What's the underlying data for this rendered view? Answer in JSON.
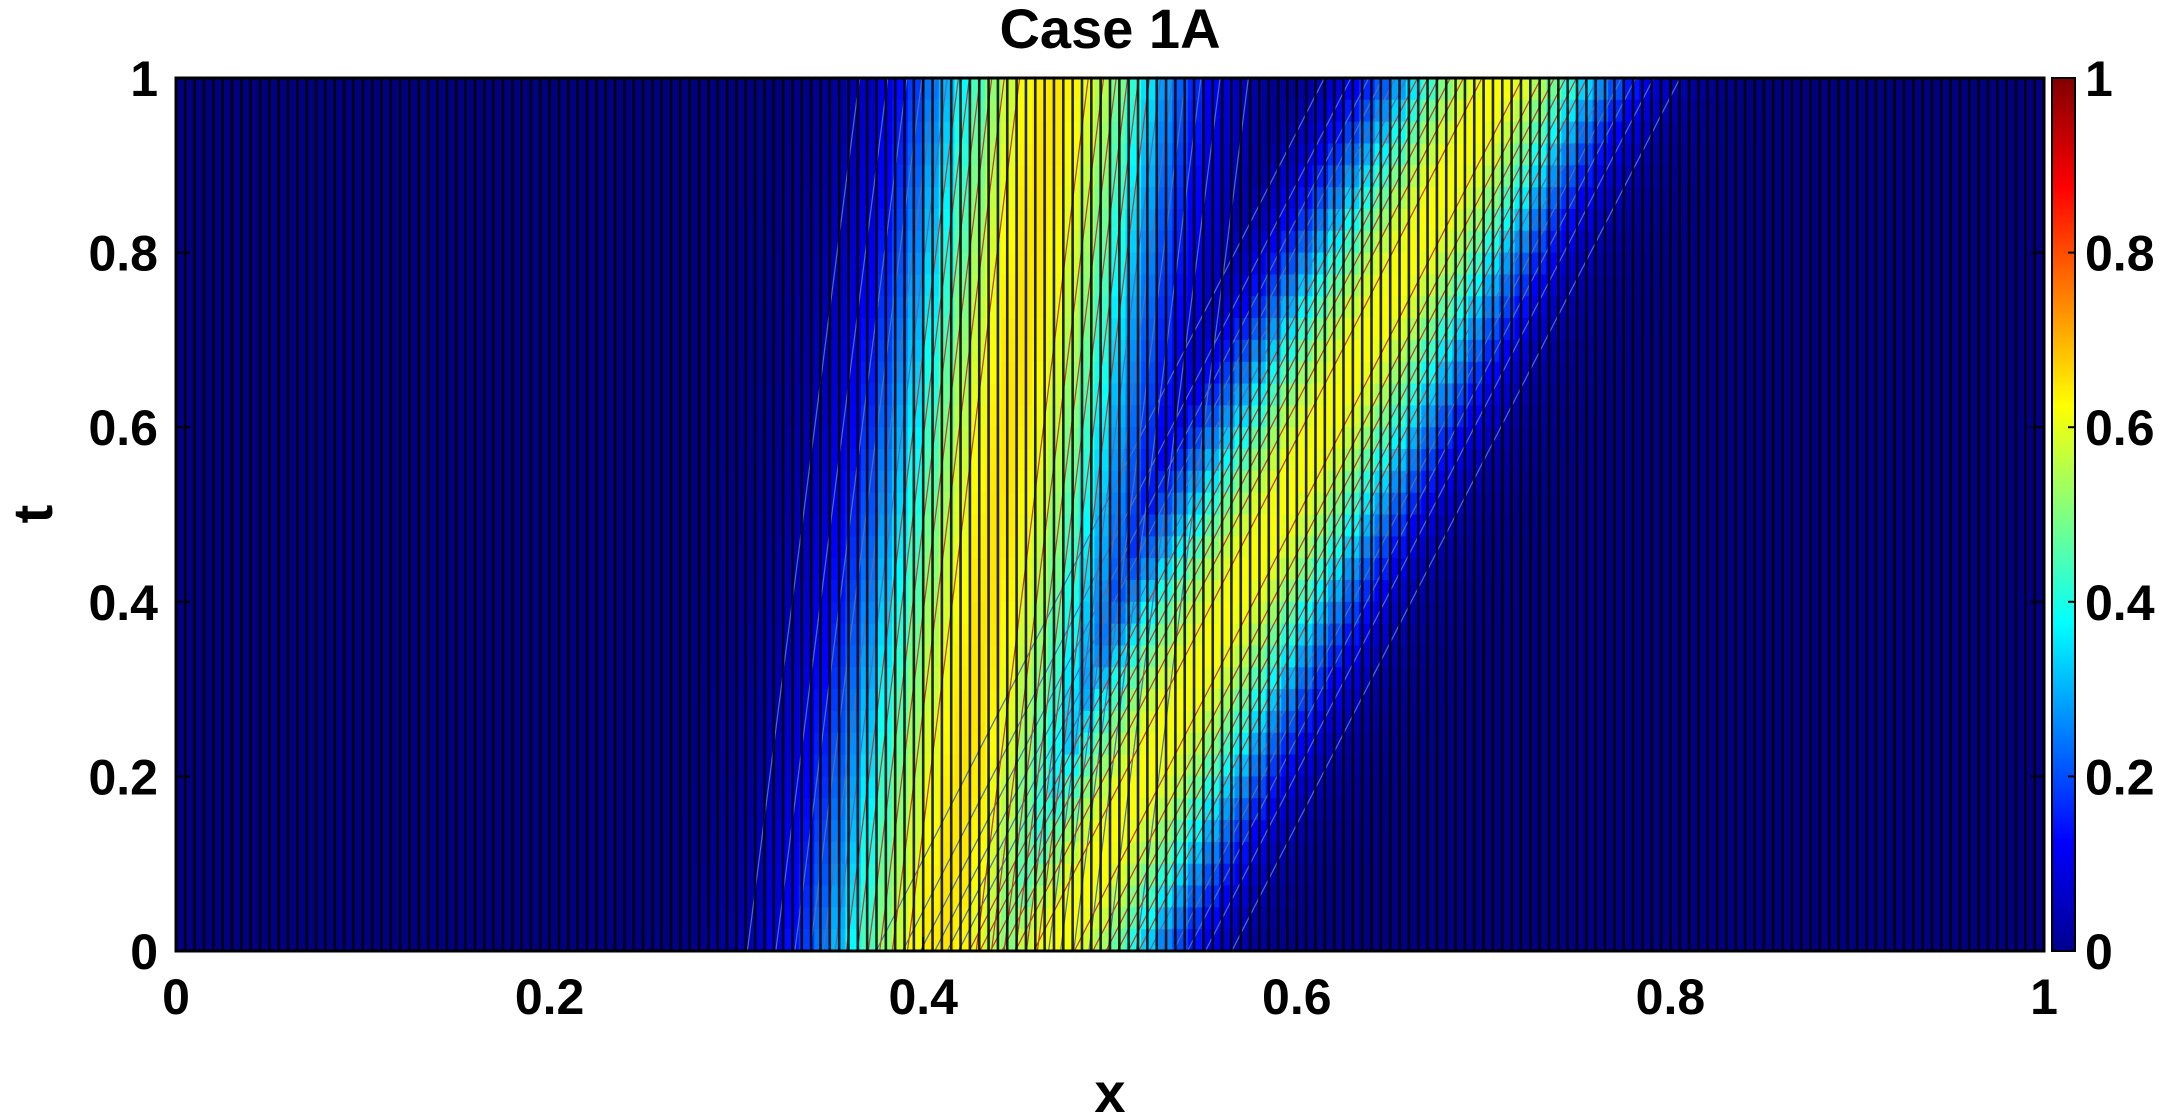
{
  "chart_data": {
    "type": "heatmap",
    "title": "Case 1A",
    "xlabel": "x",
    "ylabel": "t",
    "xlim": [
      0,
      1
    ],
    "ylim": [
      0,
      1
    ],
    "xticks": [
      0,
      0.2,
      0.4,
      0.6,
      0.8,
      1
    ],
    "xtick_labels": [
      "0",
      "0.2",
      "0.4",
      "0.6",
      "0.8",
      "1"
    ],
    "yticks": [
      0,
      0.2,
      0.4,
      0.6,
      0.8,
      1
    ],
    "ytick_labels": [
      "0",
      "0.2",
      "0.4",
      "0.6",
      "0.8",
      "1"
    ],
    "colorbar": {
      "colormap": "jet",
      "clim": [
        0,
        1
      ],
      "ticks": [
        0,
        0.2,
        0.4,
        0.6,
        0.8,
        1
      ],
      "tick_labels": [
        "0",
        "0.2",
        "0.4",
        "0.6",
        "0.8",
        "1"
      ]
    },
    "grid": false,
    "mesh_lines": {
      "orientation": "vertical",
      "count": 200,
      "color": "#000000"
    },
    "field": {
      "description_of_shape": "two advected bands; left band peak x increases with t, right band peak x increases faster with t",
      "band1": {
        "peak_x_at_t0": 0.41,
        "peak_x_at_t1": 0.47,
        "width": 0.065,
        "amplitude": 0.65
      },
      "band2": {
        "peak_x_at_t0": 0.47,
        "peak_x_at_t1": 0.71,
        "width": 0.06,
        "amplitude": 0.62
      }
    },
    "contours": {
      "low_levels_color": "#4a6fb5",
      "high_levels_color": "#c0392b",
      "levels": [
        0.05,
        0.1,
        0.15,
        0.2,
        0.25,
        0.3,
        0.35,
        0.4,
        0.45,
        0.5,
        0.55,
        0.6,
        0.65
      ]
    }
  }
}
